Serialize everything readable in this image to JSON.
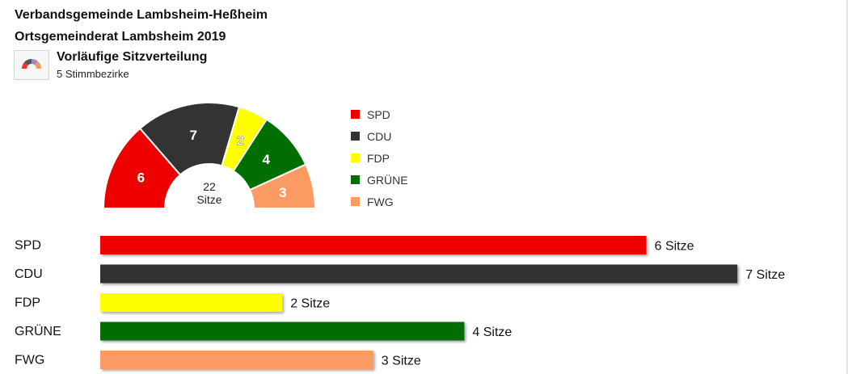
{
  "header": {
    "municipality": "Verbandsgemeinde Lambsheim-Heßheim",
    "council": "Ortsgemeinderat Lambsheim 2019",
    "subtitle": "Vorläufige Sitzverteilung",
    "districts": "5 Stimmbezirke"
  },
  "thumbnail": {
    "icon": "parliament-chart-icon"
  },
  "chart_data": [
    {
      "type": "pie",
      "variant": "semicircle-donut",
      "categories": [
        "SPD",
        "CDU",
        "FDP",
        "GRÜNE",
        "FWG"
      ],
      "values": [
        6,
        7,
        2,
        4,
        3
      ],
      "colors": [
        "#ee0000",
        "#333333",
        "#ffff00",
        "#006e00",
        "#fa9b63"
      ],
      "center_label": [
        "22",
        "Sitze"
      ],
      "legend": "right"
    },
    {
      "type": "bar",
      "orientation": "horizontal",
      "categories": [
        "SPD",
        "CDU",
        "FDP",
        "GRÜNE",
        "FWG"
      ],
      "values": [
        6,
        7,
        2,
        4,
        3
      ],
      "value_labels": [
        "6 Sitze",
        "7 Sitze",
        "2 Sitze",
        "4 Sitze",
        "3 Sitze"
      ],
      "colors": [
        "#ee0000",
        "#333333",
        "#ffff00",
        "#006e00",
        "#fa9b63"
      ],
      "xlim": [
        0,
        7
      ]
    }
  ]
}
